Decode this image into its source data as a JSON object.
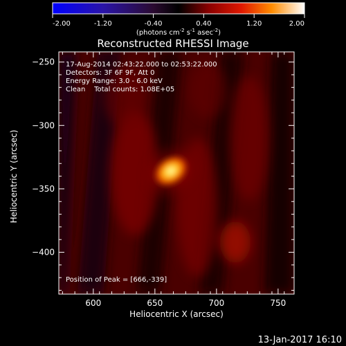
{
  "title": "Reconstructed RHESSI Image",
  "info": {
    "line1": "17-Aug-2014 02:43:22.000 to 02:53:22.000",
    "line2": "Detectors: 3F 6F 9F, Att 0",
    "line3": "Energy Range: 3.0 - 6.0 keV",
    "line4": "Clean    Total counts: 1.08E+05",
    "peak": "Position of Peak = [666,-339]"
  },
  "colorbar": {
    "ticks": [
      "-2.00",
      "-1.20",
      "-0.40",
      "0.40",
      "1.20",
      "2.00"
    ],
    "unit_main": "(photons cm",
    "unit_sup1": "-2",
    "unit_mid1": " s",
    "unit_sup2": "-1",
    "unit_mid2": " asec",
    "unit_sup3": "-2",
    "unit_end": ")",
    "range": [
      -2.0,
      2.0
    ]
  },
  "footer": {
    "date": "13-Jan-2017 16:10"
  },
  "chart_data": {
    "type": "heatmap",
    "title": "Reconstructed RHESSI Image",
    "xlabel": "Heliocentric X (arcsec)",
    "ylabel": "Heliocentric Y (arcsec)",
    "xlim": [
      572,
      763
    ],
    "ylim": [
      -433,
      -242
    ],
    "x_ticks": [
      600,
      650,
      700,
      750
    ],
    "y_ticks": [
      -250,
      -300,
      -350,
      -400
    ],
    "peak": {
      "x": 666,
      "y": -339
    },
    "colorbar_range": [
      -2.0,
      2.0
    ],
    "colormap": "red-temperature"
  }
}
